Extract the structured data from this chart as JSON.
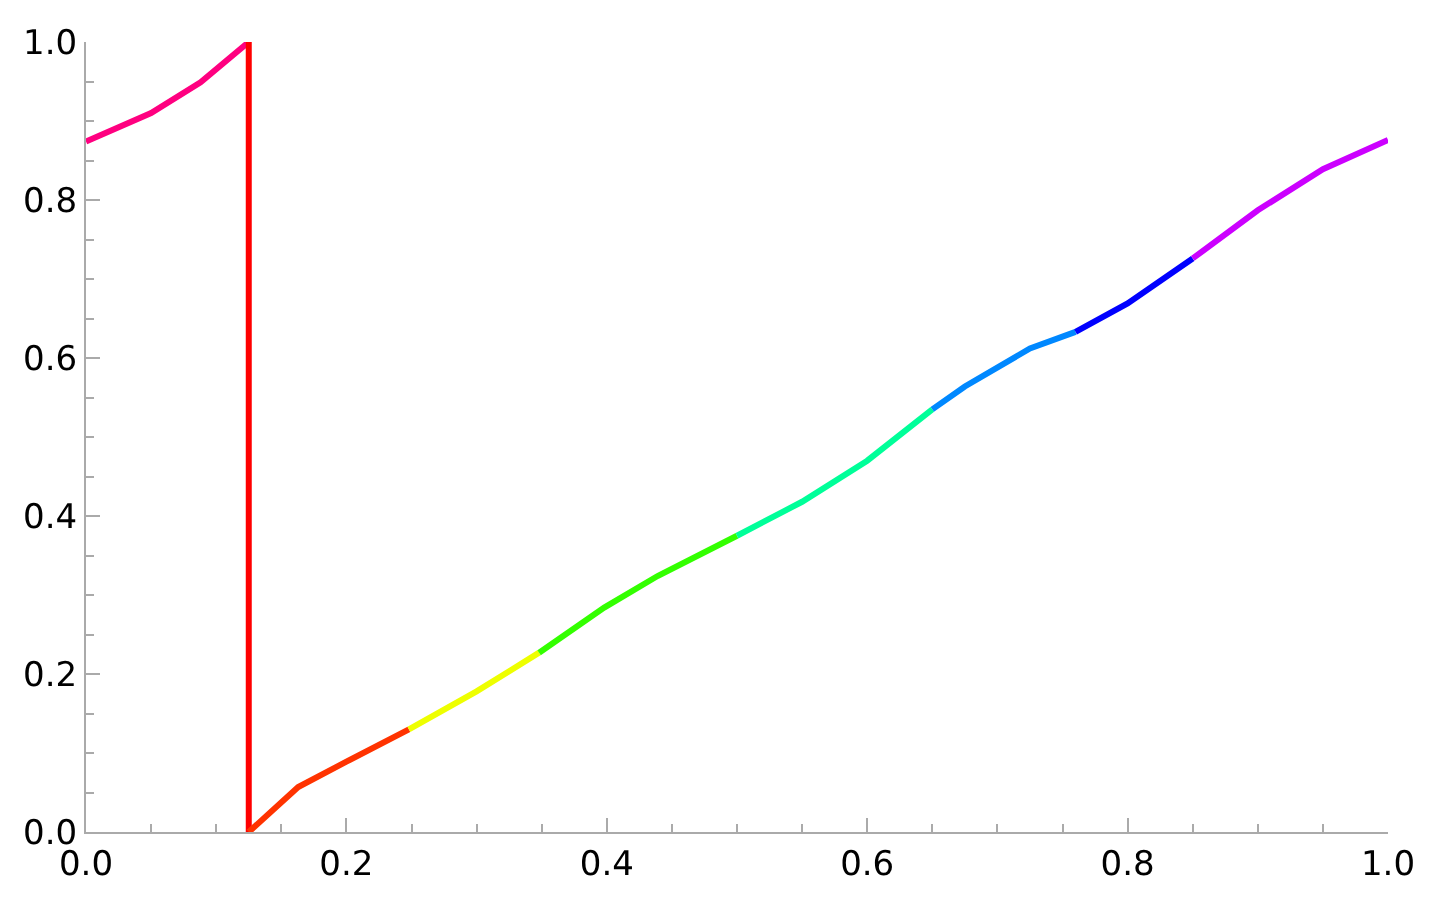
{
  "chart_data": {
    "type": "line",
    "xlim": [
      0,
      1
    ],
    "ylim": [
      0,
      1
    ],
    "xticks": [
      {
        "value": 0,
        "label": "0.0"
      },
      0.2,
      0.4,
      0.6,
      0.8,
      {
        "value": 1,
        "label": "1.0"
      }
    ],
    "yticks": [
      {
        "value": 0,
        "label": "0.0"
      },
      0.2,
      0.4,
      0.6,
      0.8,
      {
        "value": 1,
        "label": "1.0"
      }
    ],
    "grid": false,
    "marker": "none",
    "line_style": "solid",
    "series": [
      {
        "color": "#ff0080",
        "x": [
          0,
          0.05,
          0.088,
          0.125
        ],
        "values": [
          0.874,
          0.91,
          0.949,
          1.0
        ]
      },
      {
        "color": "#ff0000",
        "x": [
          0.125,
          0.125
        ],
        "values": [
          1.0,
          0
        ]
      },
      {
        "color": "#ff3300",
        "x": [
          0.125,
          0.163,
          0.2,
          0.248
        ],
        "values": [
          0,
          0.057,
          0.089,
          0.13
        ]
      },
      {
        "color": "#eeff00",
        "x": [
          0.248,
          0.3,
          0.348
        ],
        "values": [
          0.13,
          0.178,
          0.227
        ]
      },
      {
        "color": "#33ff00",
        "x": [
          0.348,
          0.398,
          0.439,
          0.5
        ],
        "values": [
          0.227,
          0.284,
          0.324,
          0.375
        ]
      },
      {
        "color": "#00ff99",
        "x": [
          0.5,
          0.55,
          0.6,
          0.65
        ],
        "values": [
          0.375,
          0.418,
          0.47,
          0.535
        ]
      },
      {
        "color": "#0088ff",
        "x": [
          0.65,
          0.675,
          0.725,
          0.76
        ],
        "values": [
          0.535,
          0.564,
          0.612,
          0.633
        ]
      },
      {
        "color": "#0000ff",
        "x": [
          0.76,
          0.8,
          0.85
        ],
        "values": [
          0.633,
          0.669,
          0.726
        ]
      },
      {
        "color": "#cc00ff",
        "x": [
          0.85,
          0.9,
          0.95,
          1.0
        ],
        "values": [
          0.726,
          0.787,
          0.839,
          0.876
        ]
      }
    ]
  }
}
